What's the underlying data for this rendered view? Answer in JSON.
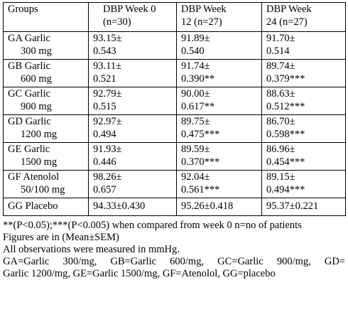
{
  "table": {
    "header": {
      "groups": "Groups",
      "week0": [
        "DBP Week 0",
        "(n=30)"
      ],
      "week12": [
        "DBP Week",
        "12 (n=27)"
      ],
      "week24": [
        "DBP Week",
        "24 (n=27)"
      ]
    },
    "rows": [
      {
        "group": [
          "GA Garlic",
          "300 mg"
        ],
        "w0": [
          "93.15±",
          "0.543"
        ],
        "w12": [
          "91.89±",
          "0.540"
        ],
        "w24": [
          "91.70±",
          "0.514"
        ]
      },
      {
        "group": [
          "GB Garlic",
          "600 mg"
        ],
        "w0": [
          "93.11±",
          "0.521"
        ],
        "w12": [
          "91.74±",
          "0.390**"
        ],
        "w24": [
          "89.74±",
          "0.379***"
        ]
      },
      {
        "group": [
          "GC Garlic",
          "900 mg"
        ],
        "w0": [
          "92.79±",
          "0.515"
        ],
        "w12": [
          "90.00±",
          "0.617**"
        ],
        "w24": [
          "88.63±",
          "0.512***"
        ]
      },
      {
        "group": [
          "GD Garlic",
          "1200 mg"
        ],
        "w0": [
          "92.97±",
          "0.494"
        ],
        "w12": [
          "89.75±",
          "0.475***"
        ],
        "w24": [
          "86.70±",
          "0.598***"
        ]
      },
      {
        "group": [
          "GE Garlic",
          "1500 mg"
        ],
        "w0": [
          "91.93±",
          "0.446"
        ],
        "w12": [
          "89.59±",
          "0.370***"
        ],
        "w24": [
          "86.96±",
          "0.454***"
        ]
      },
      {
        "group": [
          "GF Atenolol",
          "50/100 mg"
        ],
        "w0": [
          "98.26±",
          "0.657"
        ],
        "w12": [
          "92.04±",
          "0.561***"
        ],
        "w24": [
          "89.15±",
          "0.494***"
        ]
      }
    ],
    "last_row": {
      "group": "GG Placebo",
      "w0": "94.33±0.430",
      "w12": "95.26±0.418",
      "w24": "95.37±0.221"
    }
  },
  "notes": {
    "line1": "**(P<0.05);***(P<0.005) when compared from week 0 n=no of patients",
    "line2": "Figures are in (Mean±SEM)",
    "line3": "All observations were measured in mmHg.",
    "line4": "GA=Garlic 300/mg, GB=Garlic 600/mg, GC=Garlic 900/mg, GD=",
    "line5": "Garlic 1200/mg, GE=Garlic 1500/mg, GF=Atenolol, GG=placebo"
  }
}
